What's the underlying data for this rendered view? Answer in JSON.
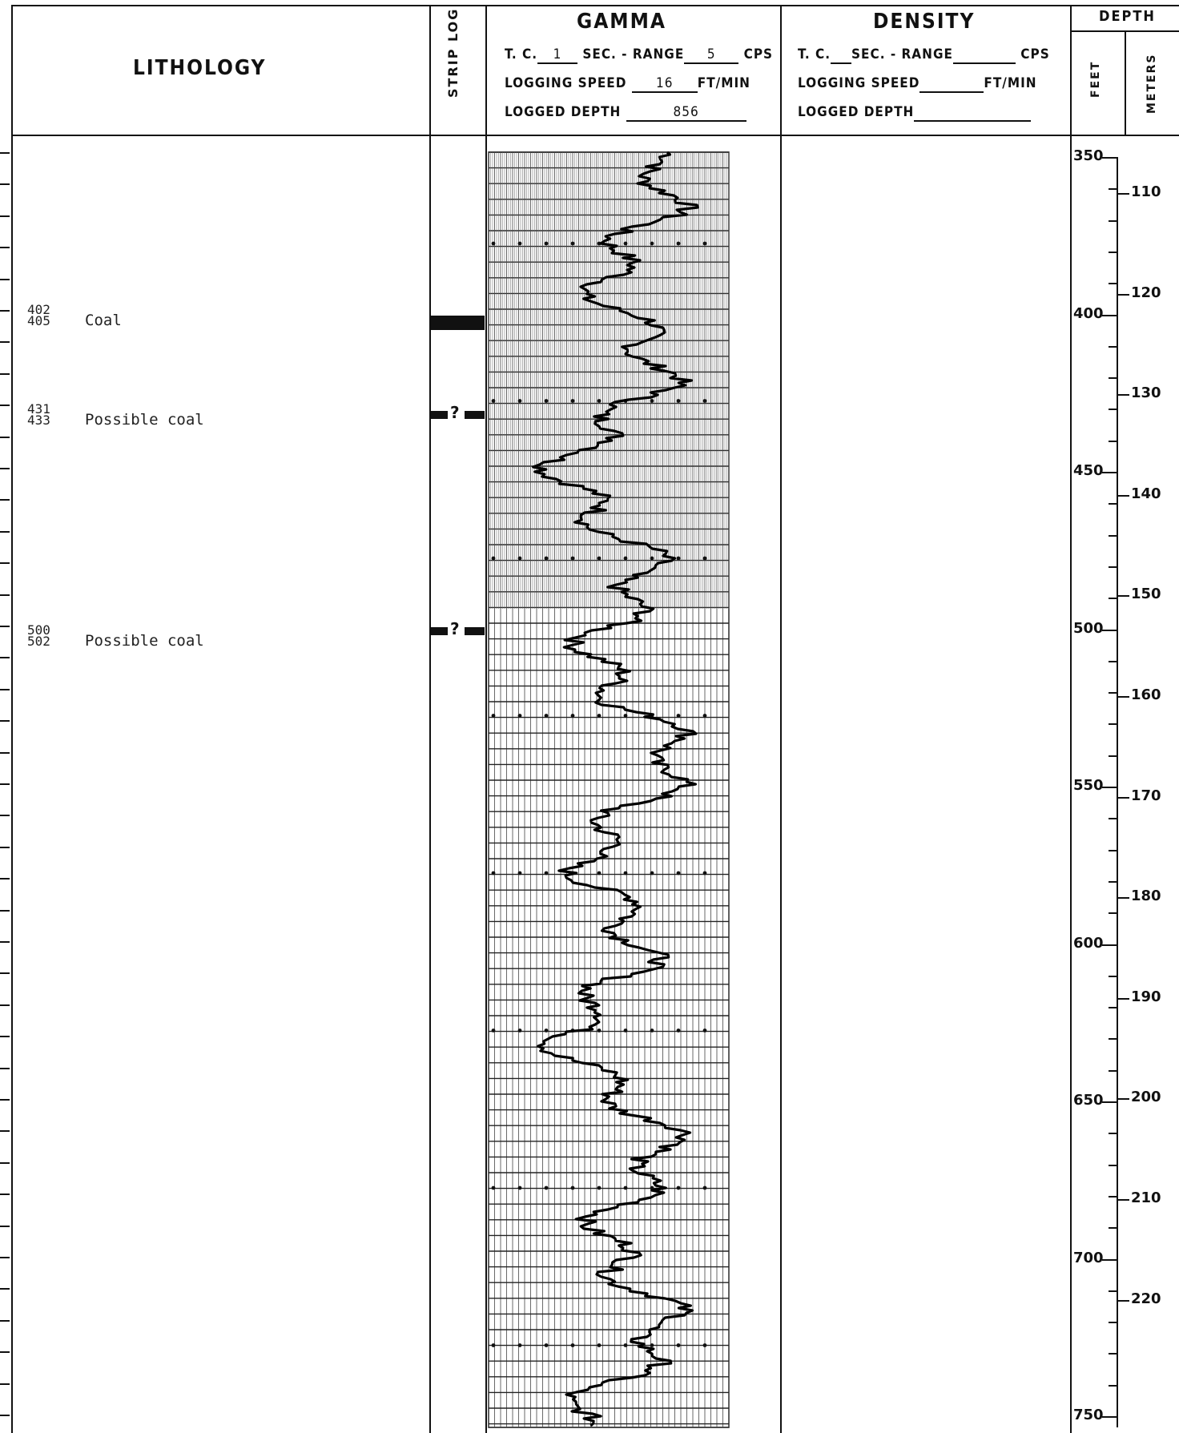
{
  "headers": {
    "lithology": "LITHOLOGY",
    "strip_log": "STRIP LOG",
    "gamma": {
      "title": "GAMMA",
      "tc_label": "T. C.",
      "tc_value": "1",
      "sec_range_label": "SEC. - RANGE",
      "range_value": "5",
      "cps": "CPS",
      "speed_label": "LOGGING SPEED",
      "speed_value": "16",
      "speed_unit": "FT/MIN",
      "depth_label": "LOGGED DEPTH",
      "depth_value": "856"
    },
    "density": {
      "title": "DENSITY",
      "tc_label": "T. C.",
      "sec_range_label": "SEC. - RANGE",
      "cps": "CPS",
      "speed_label": "LOGGING SPEED",
      "speed_unit": "FT/MIN",
      "depth_label": "LOGGED DEPTH"
    },
    "depth": "DEPTH",
    "feet": "FEET",
    "meters": "METERS"
  },
  "lithology_notes": [
    {
      "top": "402",
      "bottom": "405",
      "label": "Coal",
      "strip_marker": ""
    },
    {
      "top": "431",
      "bottom": "433",
      "label": "Possible coal",
      "strip_marker": "?"
    },
    {
      "top": "500",
      "bottom": "502",
      "label": "Possible coal",
      "strip_marker": "?"
    }
  ],
  "depth_scale": {
    "feet_labels": [
      "350",
      "400",
      "450",
      "500",
      "550",
      "600",
      "650",
      "700",
      "750"
    ],
    "meter_labels": [
      "110",
      "120",
      "130",
      "140",
      "150",
      "160",
      "170",
      "180",
      "190",
      "200",
      "210",
      "220"
    ]
  },
  "colors": {
    "ink": "#111111",
    "paper": "#ffffff",
    "grid": "#444444"
  }
}
